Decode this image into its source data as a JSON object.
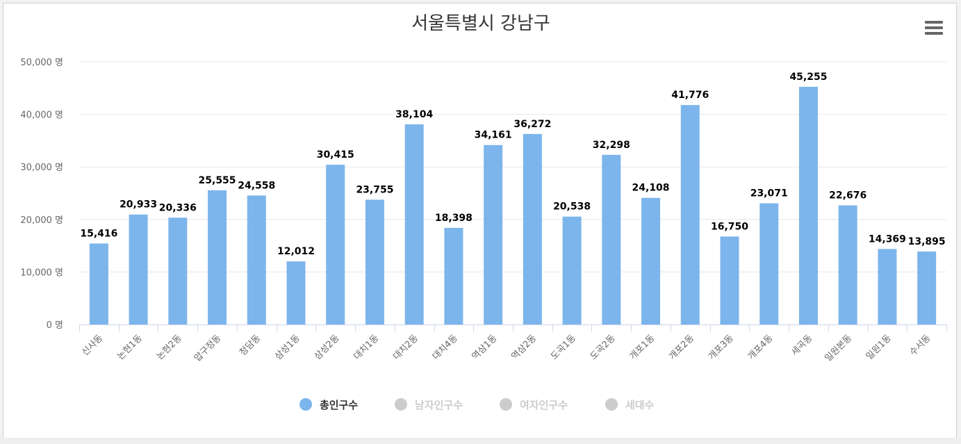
{
  "chart_data": {
    "type": "bar",
    "title": "서울특별시 강남구",
    "xlabel": "",
    "ylabel": "",
    "ylim": [
      0,
      50000
    ],
    "yticks": [
      0,
      10000,
      20000,
      30000,
      40000,
      50000
    ],
    "ytick_labels": [
      "0 명",
      "10,000 명",
      "20,000 명",
      "30,000 명",
      "40,000 명",
      "50,000 명"
    ],
    "categories": [
      "신사동",
      "논현1동",
      "논현2동",
      "압구정동",
      "청담동",
      "삼성1동",
      "삼성2동",
      "대치1동",
      "대치2동",
      "대치4동",
      "역삼1동",
      "역삼2동",
      "도곡1동",
      "도곡2동",
      "개포1동",
      "개포2동",
      "개포3동",
      "개포4동",
      "세곡동",
      "일원본동",
      "일원1동",
      "수서동"
    ],
    "series": [
      {
        "name": "총인구수",
        "values": [
          15416,
          20933,
          20336,
          25555,
          24558,
          12012,
          30415,
          23755,
          38104,
          18398,
          34161,
          36272,
          20538,
          32298,
          24108,
          41776,
          16750,
          23071,
          45255,
          22676,
          14369,
          13895
        ],
        "data_labels": [
          "15,416",
          "20,933",
          "20,336",
          "25,555",
          "24,558",
          "12,012",
          "30,415",
          "23,755",
          "38,104",
          "18,398",
          "34,161",
          "36,272",
          "20,538",
          "32,298",
          "24,108",
          "41,776",
          "16,750",
          "23,071",
          "45,255",
          "22,676",
          "14,369",
          "13,895"
        ],
        "color": "#7cb5ec",
        "visible": true
      }
    ],
    "legend": {
      "placement": "bottom-center",
      "items": [
        {
          "name": "총인구수",
          "active": true,
          "color": "#7cb5ec"
        },
        {
          "name": "남자인구수",
          "active": false,
          "color": "#cccccc"
        },
        {
          "name": "여자인구수",
          "active": false,
          "color": "#cccccc"
        },
        {
          "name": "세대수",
          "active": false,
          "color": "#cccccc"
        }
      ]
    },
    "grid": true
  },
  "colors": {
    "grid": "#e6e6e6",
    "axis": "#ccd6eb",
    "inactive_text": "#cccccc",
    "active_text": "#333333",
    "menu_icon": "#666666"
  },
  "icons": {
    "menu": "hamburger-menu-icon"
  }
}
